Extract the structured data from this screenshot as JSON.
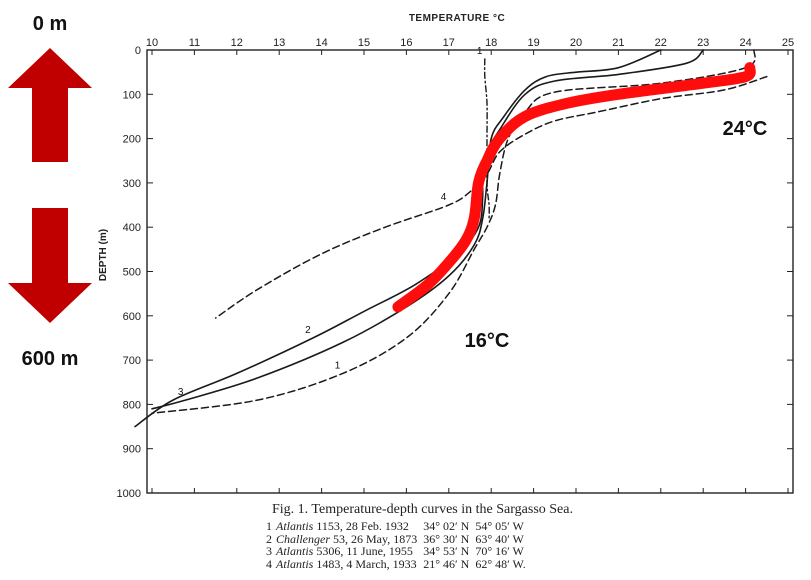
{
  "annotations": {
    "top_depth": "0 m",
    "bottom_depth": "600 m",
    "label_warm": "24°C",
    "label_cold": "16°C",
    "arrow_color": "#c00000",
    "highlight_color": "#ff0d0d"
  },
  "caption": {
    "title": "Fig. 1.  Temperature-depth curves in the Sargasso Sea.",
    "rows": [
      {
        "num": "1",
        "ship": "Atlantis",
        "rest": "1153, 28 Feb. 1932",
        "lat": "34° 02′ N",
        "lon": "54° 05′ W"
      },
      {
        "num": "2",
        "ship": "Challenger",
        "rest": "53, 26 May, 1873",
        "lat": "36° 30′ N",
        "lon": "63° 40′ W"
      },
      {
        "num": "3",
        "ship": "Atlantis",
        "rest": "5306, 11 June, 1955",
        "lat": "34° 53′ N",
        "lon": "70° 16′ W"
      },
      {
        "num": "4",
        "ship": "Atlantis",
        "rest": "1483, 4 March, 1933",
        "lat": "21° 46′ N",
        "lon": "62° 48′ W."
      }
    ]
  },
  "chart_data": {
    "type": "line",
    "title": "Fig. 1.  Temperature-depth curves in the Sargasso Sea.",
    "xlabel": "TEMPERATURE °C",
    "ylabel": "DEPTH (m)",
    "xlim": [
      10,
      25
    ],
    "ylim": [
      1000,
      0
    ],
    "x_axis_position": "top",
    "grid": false,
    "x_ticks": [
      10,
      11,
      12,
      13,
      14,
      15,
      16,
      17,
      18,
      19,
      20,
      21,
      22,
      23,
      24,
      25
    ],
    "y_ticks": [
      0,
      100,
      200,
      300,
      400,
      500,
      600,
      700,
      800,
      900,
      1000
    ],
    "series": [
      {
        "name": "1",
        "style": "dash-dot",
        "points": [
          [
            17.85,
            20
          ],
          [
            17.85,
            60
          ],
          [
            17.9,
            120
          ],
          [
            17.9,
            200
          ],
          [
            17.9,
            300
          ],
          [
            17.95,
            350
          ],
          [
            17.95,
            380
          ]
        ]
      },
      {
        "name": "1",
        "style": "dashed",
        "points": [
          [
            24.2,
            0
          ],
          [
            24.0,
            40
          ],
          [
            22.0,
            75
          ],
          [
            19.5,
            95
          ],
          [
            18.8,
            140
          ],
          [
            18.4,
            200
          ],
          [
            18.2,
            280
          ],
          [
            18.1,
            350
          ],
          [
            17.9,
            400
          ],
          [
            17.6,
            450
          ],
          [
            17.0,
            550
          ],
          [
            16.0,
            650
          ],
          [
            14.5,
            730
          ],
          [
            12.5,
            790
          ],
          [
            10.0,
            820
          ]
        ]
      },
      {
        "name": "2",
        "style": "solid",
        "points": [
          [
            23.0,
            0
          ],
          [
            22.6,
            30
          ],
          [
            21.0,
            55
          ],
          [
            19.5,
            70
          ],
          [
            18.8,
            100
          ],
          [
            18.2,
            180
          ],
          [
            17.8,
            250
          ],
          [
            17.8,
            330
          ],
          [
            17.7,
            400
          ],
          [
            17.2,
            460
          ],
          [
            16.2,
            530
          ],
          [
            15.0,
            590
          ],
          [
            13.8,
            650
          ],
          [
            12.0,
            730
          ],
          [
            10.5,
            790
          ],
          [
            9.6,
            850
          ]
        ]
      },
      {
        "name": "3",
        "style": "solid",
        "points": [
          [
            22.0,
            0
          ],
          [
            21.0,
            40
          ],
          [
            20.0,
            50
          ],
          [
            19.3,
            60
          ],
          [
            18.8,
            90
          ],
          [
            18.3,
            150
          ],
          [
            18.0,
            200
          ],
          [
            17.9,
            300
          ],
          [
            17.8,
            380
          ],
          [
            17.6,
            440
          ],
          [
            17.0,
            510
          ],
          [
            16.0,
            580
          ],
          [
            14.5,
            660
          ],
          [
            12.5,
            740
          ],
          [
            10.8,
            790
          ],
          [
            10.0,
            810
          ]
        ]
      },
      {
        "name": "4",
        "style": "dashed",
        "points": [
          [
            24.5,
            60
          ],
          [
            23.5,
            90
          ],
          [
            22.0,
            110
          ],
          [
            20.5,
            140
          ],
          [
            19.5,
            160
          ],
          [
            18.8,
            190
          ],
          [
            18.2,
            230
          ],
          [
            17.9,
            280
          ],
          [
            17.5,
            320
          ],
          [
            17.0,
            350
          ],
          [
            15.5,
            400
          ],
          [
            14.0,
            460
          ],
          [
            12.5,
            540
          ],
          [
            11.5,
            605
          ]
        ]
      },
      {
        "name": "",
        "style": "highlight",
        "points": [
          [
            24.1,
            40
          ],
          [
            24.0,
            60
          ],
          [
            23.0,
            75
          ],
          [
            21.0,
            100
          ],
          [
            19.8,
            120
          ],
          [
            18.8,
            150
          ],
          [
            18.2,
            200
          ],
          [
            17.9,
            250
          ],
          [
            17.7,
            300
          ],
          [
            17.6,
            380
          ],
          [
            17.4,
            430
          ],
          [
            17.0,
            480
          ],
          [
            16.5,
            530
          ],
          [
            15.8,
            580
          ]
        ]
      }
    ]
  }
}
